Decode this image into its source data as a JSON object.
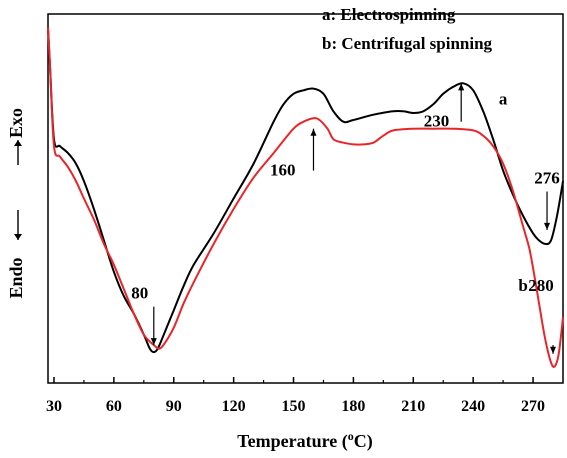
{
  "chart_data": {
    "type": "line",
    "xlabel": "Temperature (",
    "xlabel_unit_super": "o",
    "xlabel_unit": "C)",
    "ylabel_top": "Exo",
    "ylabel_bottom": "Endo",
    "xlim": [
      27,
      285
    ],
    "ylim": [
      0,
      100
    ],
    "x_ticks": [
      30,
      60,
      90,
      120,
      150,
      180,
      210,
      240,
      270
    ],
    "x_tick_labels": [
      "30",
      "60",
      "90",
      "120",
      "150",
      "180",
      "210",
      "240",
      "270"
    ],
    "legend": [
      "a: Electrospinning",
      "b: Centrifugal spinning"
    ],
    "legend_position": "top-right",
    "grid": false,
    "colors": {
      "a": "#000000",
      "b": "#e8262a"
    },
    "series": [
      {
        "label": "a",
        "color": "#000000",
        "x": [
          27,
          28,
          30,
          33,
          37,
          41,
          45,
          50,
          55,
          60,
          65,
          70,
          75,
          78,
          80,
          82,
          85,
          90,
          95,
          100,
          110,
          120,
          130,
          140,
          145,
          150,
          155,
          160,
          165,
          170,
          175,
          180,
          190,
          200,
          205,
          210,
          215,
          220,
          225,
          230,
          235,
          240,
          245,
          250,
          255,
          260,
          265,
          270,
          273,
          276,
          279,
          282,
          285
        ],
        "y": [
          99,
          88,
          67,
          65,
          63,
          60,
          55,
          47,
          38,
          29,
          22,
          17,
          11,
          7,
          6,
          7,
          11,
          18,
          25,
          31,
          40,
          50,
          60,
          72,
          77,
          80,
          81,
          81.5,
          80,
          75,
          72,
          72.5,
          74,
          75,
          75,
          74.5,
          75,
          77,
          80,
          82,
          83,
          81,
          75,
          67,
          58,
          51,
          45,
          40,
          38,
          37,
          38,
          45,
          55
        ]
      },
      {
        "label": "b",
        "color": "#e8262a",
        "x": [
          27,
          28,
          30,
          33,
          37,
          41,
          45,
          50,
          55,
          60,
          65,
          70,
          75,
          80,
          83,
          86,
          90,
          95,
          100,
          110,
          120,
          130,
          140,
          150,
          155,
          160,
          163,
          167,
          170,
          175,
          180,
          185,
          190,
          195,
          200,
          210,
          220,
          230,
          240,
          245,
          250,
          255,
          260,
          265,
          268,
          270,
          273,
          276,
          279,
          281,
          283,
          285
        ],
        "y": [
          99,
          88,
          65,
          62,
          59,
          55,
          50,
          44,
          37,
          31,
          24,
          17,
          11,
          8,
          7,
          9,
          13,
          20,
          26,
          37,
          47,
          56,
          63,
          70,
          72,
          73,
          72.5,
          70,
          67,
          66,
          65.5,
          65.5,
          66,
          68,
          69.5,
          70,
          70,
          70,
          69.5,
          68,
          65,
          60,
          52,
          42,
          36,
          30,
          20,
          10,
          3,
          2,
          6,
          16
        ]
      }
    ],
    "annotations": [
      {
        "text": "80",
        "x": 80,
        "y_text": 26,
        "arrow_from": 19,
        "arrow_to": 8,
        "dir": "down"
      },
      {
        "text": "160",
        "x": 160,
        "y_text": 51,
        "arrow_from": 58,
        "arrow_to": 70,
        "dir": "up"
      },
      {
        "text": "230",
        "x": 234,
        "y_text": 75,
        "arrow_from": 72,
        "arrow_to": 83,
        "dir": "up"
      },
      {
        "text": "276",
        "x": 277,
        "y_text": 58,
        "arrow_from": 52,
        "arrow_to": 41,
        "dir": "down"
      },
      {
        "text": "280",
        "x": 280,
        "y_text": 25,
        "arrow_from": 8,
        "arrow_to": 5.5,
        "dir": "down"
      }
    ],
    "series_labels": [
      {
        "text": "a",
        "x": 255,
        "y": 77
      },
      {
        "text": "b",
        "x": 266,
        "y": 25
      }
    ]
  }
}
